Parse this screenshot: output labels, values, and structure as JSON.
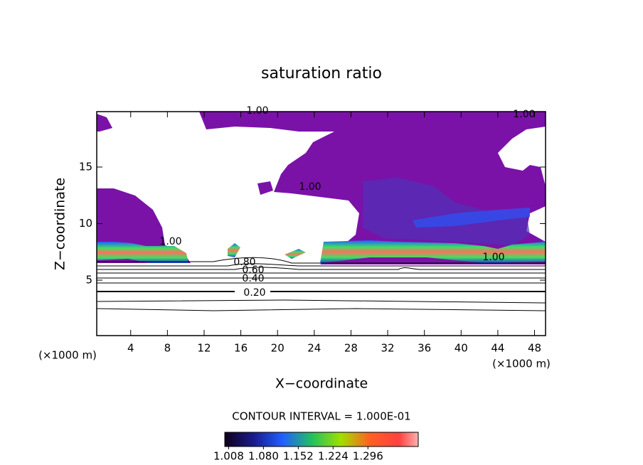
{
  "chart_data": {
    "type": "contour",
    "title": "saturation ratio",
    "x_label": "X−coordinate",
    "y_label": "Z−coordinate",
    "x_unit_label": "(×1000 m)",
    "y_unit_label": "(×1000 m)",
    "xlim": [
      0.3,
      49.2
    ],
    "xticks": [
      4,
      8,
      12,
      16,
      20,
      24,
      28,
      32,
      36,
      40,
      44,
      48
    ],
    "ylim": [
      0.1,
      19.9
    ],
    "yticks": [
      5,
      10,
      15
    ],
    "contour_labels": [
      "1.00",
      "1.00",
      "1.00",
      "1.00",
      "1.00",
      "0.80",
      "0.60",
      "0.40",
      "0.20"
    ],
    "contour_interval": "CONTOUR INTERVAL = 1.000E-01",
    "colorbar_lim": [
      1.0,
      1.4
    ],
    "colorbar_ticks": [
      1.008,
      {
        "value": 1.08,
        "label": "1.080"
      },
      1.152,
      1.224,
      1.296
    ]
  }
}
